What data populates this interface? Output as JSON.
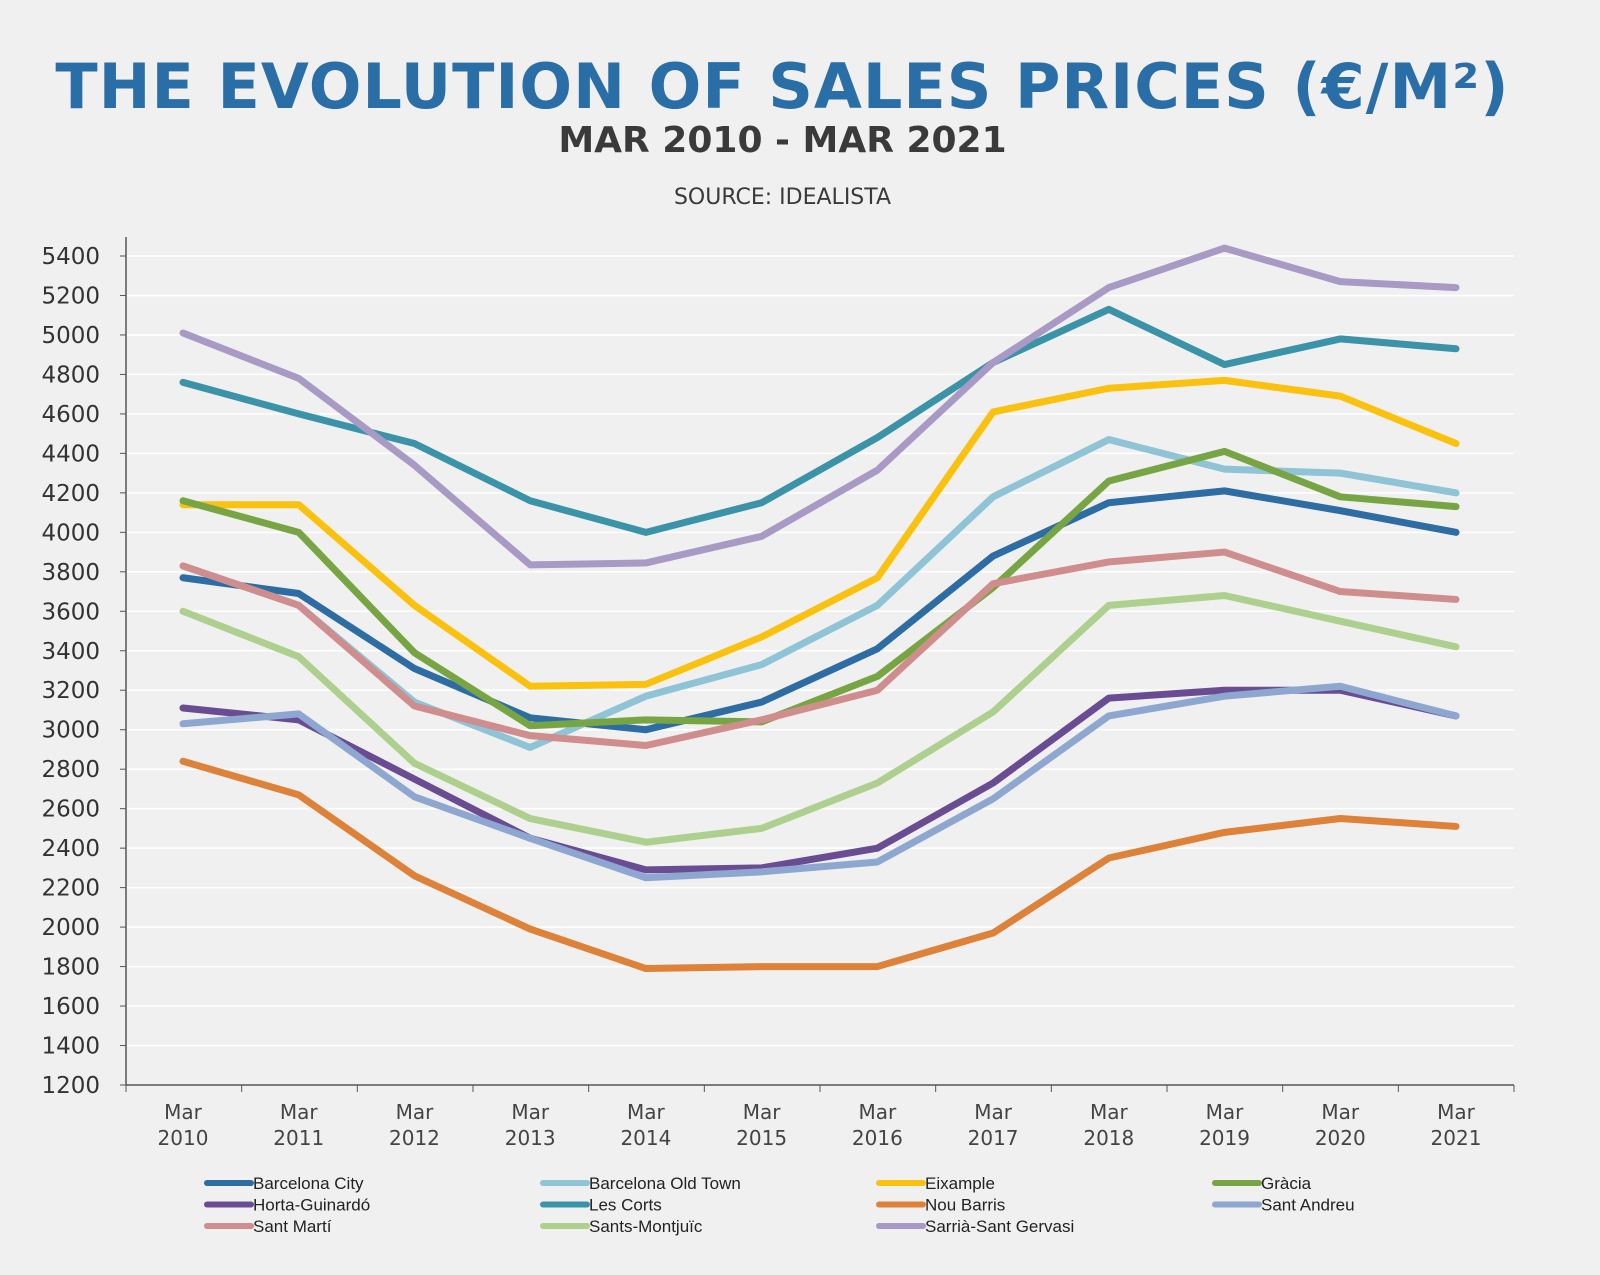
{
  "chart_data": {
    "type": "line",
    "title": "THE EVOLUTION OF SALES PRICES (€/M²)",
    "subtitle": "MAR 2010 - MAR 2021",
    "source": "SOURCE: IDEALISTA",
    "xlabel": "",
    "ylabel": "",
    "ylim": [
      1200,
      5400
    ],
    "ystep": 200,
    "grid": true,
    "legend_position": "bottom",
    "categories": [
      [
        "Mar",
        "2010"
      ],
      [
        "Mar",
        "2011"
      ],
      [
        "Mar",
        "2012"
      ],
      [
        "Mar",
        "2013"
      ],
      [
        "Mar",
        "2014"
      ],
      [
        "Mar",
        "2015"
      ],
      [
        "Mar",
        "2016"
      ],
      [
        "Mar",
        "2017"
      ],
      [
        "Mar",
        "2018"
      ],
      [
        "Mar",
        "2019"
      ],
      [
        "Mar",
        "2020"
      ],
      [
        "Mar",
        "2021"
      ]
    ],
    "series": [
      {
        "name": "Barcelona City",
        "color": "#2e6ca4",
        "values": [
          3770,
          3690,
          3310,
          3060,
          3000,
          3140,
          3410,
          3880,
          4150,
          4210,
          4110,
          4000
        ]
      },
      {
        "name": "Barcelona Old Town",
        "color": "#8fc3d6",
        "values": [
          3830,
          3630,
          3140,
          2910,
          3170,
          3330,
          3630,
          4180,
          4470,
          4320,
          4300,
          4200
        ]
      },
      {
        "name": "Eixample",
        "color": "#fbc10f",
        "values": [
          4140,
          4140,
          3630,
          3220,
          3230,
          3470,
          3770,
          4610,
          4730,
          4770,
          4690,
          4450
        ]
      },
      {
        "name": "Gràcia",
        "color": "#78a543",
        "values": [
          4160,
          4000,
          3390,
          3020,
          3050,
          3040,
          3270,
          3720,
          4260,
          4410,
          4180,
          4130
        ]
      },
      {
        "name": "Horta-Guinardó",
        "color": "#6a4c93",
        "values": [
          3110,
          3050,
          2750,
          2450,
          2290,
          2300,
          2400,
          2730,
          3160,
          3200,
          3200,
          3070
        ]
      },
      {
        "name": "Les Corts",
        "color": "#3b93a8",
        "values": [
          4760,
          4600,
          4450,
          4160,
          4000,
          4150,
          4480,
          4860,
          5130,
          4850,
          4980,
          4930
        ]
      },
      {
        "name": "Nou Barris",
        "color": "#dd8238",
        "values": [
          2840,
          2670,
          2260,
          1990,
          1790,
          1800,
          1800,
          1970,
          2350,
          2480,
          2550,
          2510
        ]
      },
      {
        "name": "Sant Andreu",
        "color": "#8ea7d1",
        "values": [
          3030,
          3080,
          2660,
          2450,
          2250,
          2280,
          2330,
          2650,
          3070,
          3170,
          3220,
          3070
        ]
      },
      {
        "name": "Sant Martí",
        "color": "#cf8d8d",
        "values": [
          3830,
          3630,
          3120,
          2970,
          2920,
          3050,
          3200,
          3740,
          3850,
          3900,
          3700,
          3660
        ]
      },
      {
        "name": "Sants-Montjuïc",
        "color": "#add08f",
        "values": [
          3600,
          3370,
          2830,
          2550,
          2430,
          2500,
          2730,
          3090,
          3630,
          3680,
          3550,
          3420
        ]
      },
      {
        "name": "Sarrià-Sant Gervasi",
        "color": "#a89ac4",
        "values": [
          5010,
          4780,
          4340,
          3835,
          3845,
          3980,
          4315,
          4860,
          5240,
          5440,
          5270,
          5240
        ]
      }
    ]
  },
  "colors": {
    "title": "#2a6ea8",
    "subtitle": "#3a3a3a"
  }
}
